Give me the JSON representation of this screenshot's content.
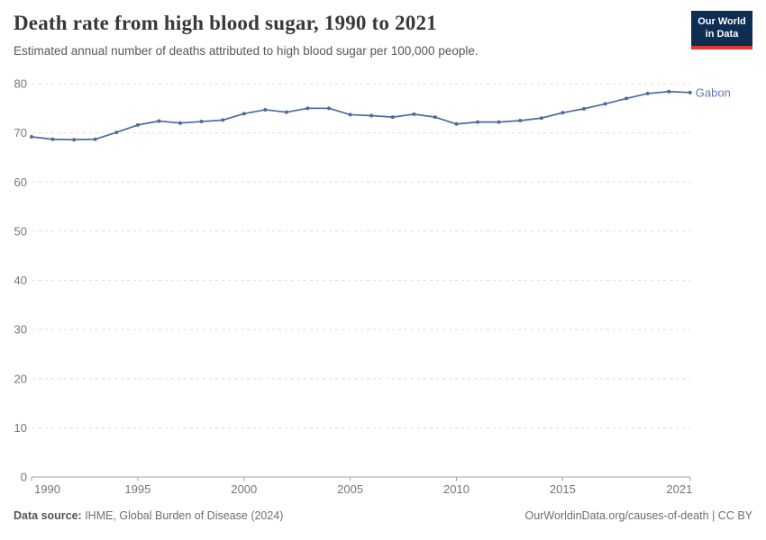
{
  "header": {
    "title": "Death rate from high blood sugar, 1990 to 2021",
    "subtitle": "Estimated annual number of deaths attributed to high blood sugar per 100,000 people.",
    "logo": {
      "line1": "Our World",
      "line2": "in Data"
    }
  },
  "chart_data": {
    "type": "line",
    "title": "Death rate from high blood sugar, 1990 to 2021",
    "xlabel": "",
    "ylabel": "",
    "xlim": [
      1990,
      2021
    ],
    "ylim": [
      0,
      80
    ],
    "x_ticks": [
      1990,
      1995,
      2000,
      2005,
      2010,
      2015,
      2021
    ],
    "y_ticks": [
      0,
      10,
      20,
      30,
      40,
      50,
      60,
      70,
      80
    ],
    "grid": "horizontal-dashed",
    "legend_position": "end-of-line-label",
    "series": [
      {
        "name": "Gabon",
        "color": "#4c6a9c",
        "label_color": "#5b7cb5",
        "x": [
          1990,
          1991,
          1992,
          1993,
          1994,
          1995,
          1996,
          1997,
          1998,
          1999,
          2000,
          2001,
          2002,
          2003,
          2004,
          2005,
          2006,
          2007,
          2008,
          2009,
          2010,
          2011,
          2012,
          2013,
          2014,
          2015,
          2016,
          2017,
          2018,
          2019,
          2020,
          2021
        ],
        "values": [
          69.2,
          68.7,
          68.6,
          68.7,
          70.1,
          71.6,
          72.4,
          72.0,
          72.3,
          72.6,
          73.9,
          74.7,
          74.2,
          75.0,
          75.0,
          73.7,
          73.5,
          73.2,
          73.8,
          73.2,
          71.8,
          72.2,
          72.2,
          72.5,
          73.0,
          74.1,
          74.9,
          75.9,
          77.0,
          78.0,
          78.4,
          78.2
        ]
      }
    ]
  },
  "footer": {
    "datasource_label": "Data source:",
    "datasource_value": " IHME, Global Burden of Disease (2024)",
    "link": "OurWorldinData.org/causes-of-death",
    "license": " | CC BY"
  },
  "colors": {
    "line": "#4c6a9c",
    "entity_label": "#5b7cb5",
    "gridline": "#dcdcdc",
    "axis_line": "#a3a3a3",
    "tick_label": "#757575",
    "logo_bg": "#0e2d52",
    "logo_accent": "#e0392f"
  }
}
